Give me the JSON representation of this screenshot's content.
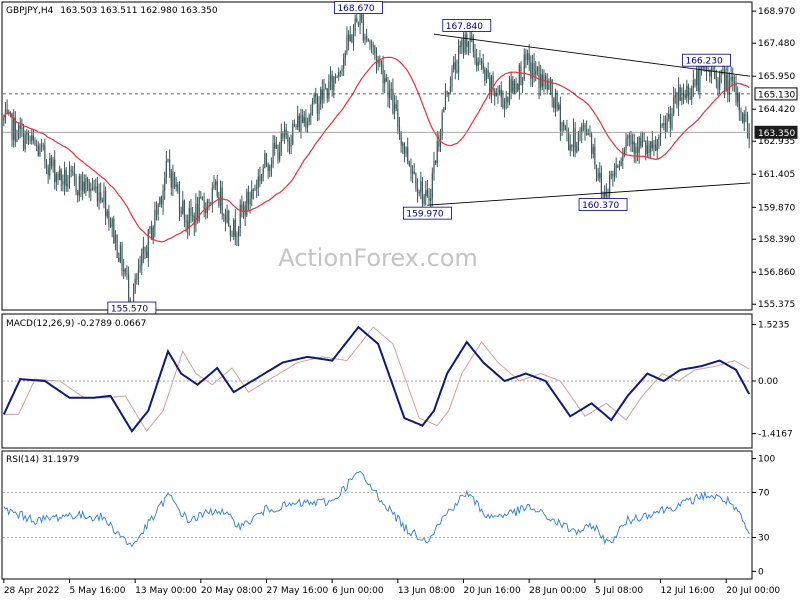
{
  "chart_data": [
    {
      "type": "candlestick",
      "symbol_header": "GBPJPY,H4",
      "ohlc_header": "163.503 163.511 162.980 163.350",
      "watermark": "ActionForex.com",
      "y_ticks": [
        "168.970",
        "167.480",
        "165.950",
        "164.420",
        "162.935",
        "161.405",
        "159.870",
        "158.390",
        "156.860",
        "155.375"
      ],
      "y_tick_values": [
        168.97,
        167.48,
        165.95,
        164.42,
        162.935,
        161.405,
        159.87,
        158.39,
        156.86,
        155.375
      ],
      "ylim": [
        155.2,
        169.3
      ],
      "x_ticks": [
        "28 Apr 2022",
        "5 May 16:00",
        "13 May 00:00",
        "20 May 08:00",
        "27 May 16:00",
        "6 Jun 00:00",
        "13 Jun 08:00",
        "20 Jun 16:00",
        "28 Jun 00:00",
        "5 Jul 08:00",
        "12 Jul 16:00",
        "20 Jul 00:00"
      ],
      "x_tick_bars": [
        0,
        40,
        80,
        120,
        160,
        200,
        240,
        280,
        320,
        360,
        400,
        440
      ],
      "bar_count": 455,
      "price_path_anchors": [
        {
          "bar": 0,
          "price": 163.9
        },
        {
          "bar": 20,
          "price": 162.6
        },
        {
          "bar": 35,
          "price": 161.2
        },
        {
          "bar": 60,
          "price": 160.6
        },
        {
          "bar": 78,
          "price": 155.57
        },
        {
          "bar": 92,
          "price": 159.4
        },
        {
          "bar": 100,
          "price": 161.8
        },
        {
          "bar": 112,
          "price": 159.2
        },
        {
          "bar": 130,
          "price": 160.6
        },
        {
          "bar": 140,
          "price": 158.8
        },
        {
          "bar": 160,
          "price": 162.0
        },
        {
          "bar": 180,
          "price": 163.8
        },
        {
          "bar": 200,
          "price": 165.6
        },
        {
          "bar": 216,
          "price": 168.67
        },
        {
          "bar": 232,
          "price": 166.0
        },
        {
          "bar": 244,
          "price": 162.6
        },
        {
          "bar": 258,
          "price": 159.97
        },
        {
          "bar": 270,
          "price": 165.4
        },
        {
          "bar": 282,
          "price": 167.84
        },
        {
          "bar": 295,
          "price": 165.5
        },
        {
          "bar": 305,
          "price": 164.9
        },
        {
          "bar": 318,
          "price": 166.5
        },
        {
          "bar": 332,
          "price": 165.4
        },
        {
          "bar": 345,
          "price": 162.8
        },
        {
          "bar": 356,
          "price": 163.6
        },
        {
          "bar": 365,
          "price": 160.37
        },
        {
          "bar": 380,
          "price": 163.2
        },
        {
          "bar": 395,
          "price": 162.3
        },
        {
          "bar": 410,
          "price": 164.8
        },
        {
          "bar": 428,
          "price": 166.23
        },
        {
          "bar": 442,
          "price": 165.6
        },
        {
          "bar": 448,
          "price": 164.6
        },
        {
          "bar": 454,
          "price": 163.35
        }
      ],
      "annotations": [
        {
          "label": "168.670",
          "bar": 216,
          "price": 168.67,
          "placement": "above"
        },
        {
          "label": "167.840",
          "bar": 282,
          "price": 167.84,
          "placement": "above"
        },
        {
          "label": "166.230",
          "bar": 428,
          "price": 166.23,
          "placement": "above"
        },
        {
          "label": "159.970",
          "bar": 258,
          "price": 159.97,
          "placement": "below"
        },
        {
          "label": "160.370",
          "bar": 365,
          "price": 160.37,
          "placement": "below"
        },
        {
          "label": "155.570",
          "bar": 78,
          "price": 155.57,
          "placement": "below"
        }
      ],
      "trendlines": [
        {
          "name": "upper",
          "from": {
            "bar": 262,
            "price": 167.9
          },
          "to": {
            "bar": 470,
            "price": 165.95
          }
        },
        {
          "name": "lower",
          "from": {
            "bar": 258,
            "price": 159.97
          },
          "to": {
            "bar": 470,
            "price": 161.0
          }
        }
      ],
      "horizontal_levels": [
        {
          "label": "165.130",
          "value": 165.13,
          "style": "dashed",
          "tag_style": "outline"
        },
        {
          "label": "163.350",
          "value": 163.35,
          "style": "solid",
          "tag_style": "filled"
        }
      ],
      "colors": {
        "candle": "#3d5a5a",
        "moving_average": "#e8303a",
        "trendline": "#000000",
        "label_border": "#00008b",
        "label_text": "#00008b",
        "watermark": "#c4c4c4"
      }
    },
    {
      "type": "line",
      "title": "MACD(12,26,9) -0.2789 0.0667",
      "y_ticks": [
        "1.5235",
        "0.00",
        "-1.4167"
      ],
      "y_tick_values": [
        1.5235,
        0.0,
        -1.4167
      ],
      "ylim": [
        -1.75,
        1.75
      ],
      "series": [
        {
          "name": "MACD",
          "color": "#0c1a7a",
          "anchors": [
            [
              0,
              -0.9
            ],
            [
              10,
              0.05
            ],
            [
              25,
              0.0
            ],
            [
              40,
              -0.45
            ],
            [
              55,
              -0.45
            ],
            [
              65,
              -0.4
            ],
            [
              78,
              -1.35
            ],
            [
              88,
              -0.8
            ],
            [
              100,
              0.8
            ],
            [
              108,
              0.2
            ],
            [
              118,
              -0.1
            ],
            [
              130,
              0.35
            ],
            [
              140,
              -0.3
            ],
            [
              155,
              0.1
            ],
            [
              170,
              0.5
            ],
            [
              185,
              0.65
            ],
            [
              200,
              0.55
            ],
            [
              216,
              1.45
            ],
            [
              228,
              1.0
            ],
            [
              236,
              0.0
            ],
            [
              244,
              -1.0
            ],
            [
              255,
              -1.2
            ],
            [
              262,
              -0.8
            ],
            [
              270,
              0.2
            ],
            [
              282,
              1.05
            ],
            [
              292,
              0.5
            ],
            [
              305,
              0.0
            ],
            [
              318,
              0.2
            ],
            [
              330,
              0.0
            ],
            [
              345,
              -0.95
            ],
            [
              358,
              -0.6
            ],
            [
              370,
              -1.05
            ],
            [
              380,
              -0.4
            ],
            [
              392,
              0.2
            ],
            [
              402,
              0.0
            ],
            [
              412,
              0.3
            ],
            [
              425,
              0.4
            ],
            [
              436,
              0.55
            ],
            [
              446,
              0.3
            ],
            [
              454,
              -0.35
            ]
          ]
        },
        {
          "name": "Signal",
          "color": "#d4a0a0",
          "lag_bars": 9
        }
      ]
    },
    {
      "type": "line",
      "title": "RSI(14) 31.1979",
      "y_ticks": [
        "100",
        "70",
        "30",
        "0"
      ],
      "y_tick_values": [
        100,
        70,
        30,
        0
      ],
      "reference_levels": [
        70,
        30
      ],
      "ylim": [
        -5,
        105
      ],
      "series": [
        {
          "name": "RSI(14)",
          "color": "#2e7fd0",
          "anchors": [
            [
              0,
              55
            ],
            [
              20,
              45
            ],
            [
              40,
              50
            ],
            [
              60,
              48
            ],
            [
              78,
              22
            ],
            [
              92,
              50
            ],
            [
              100,
              68
            ],
            [
              112,
              45
            ],
            [
              130,
              55
            ],
            [
              145,
              40
            ],
            [
              160,
              55
            ],
            [
              180,
              60
            ],
            [
              200,
              62
            ],
            [
              216,
              88
            ],
            [
              232,
              60
            ],
            [
              246,
              36
            ],
            [
              258,
              28
            ],
            [
              270,
              52
            ],
            [
              282,
              70
            ],
            [
              295,
              48
            ],
            [
              310,
              52
            ],
            [
              320,
              57
            ],
            [
              335,
              45
            ],
            [
              348,
              35
            ],
            [
              360,
              40
            ],
            [
              368,
              24
            ],
            [
              380,
              45
            ],
            [
              395,
              52
            ],
            [
              410,
              58
            ],
            [
              428,
              68
            ],
            [
              442,
              62
            ],
            [
              450,
              45
            ],
            [
              454,
              31.2
            ]
          ]
        }
      ]
    }
  ]
}
